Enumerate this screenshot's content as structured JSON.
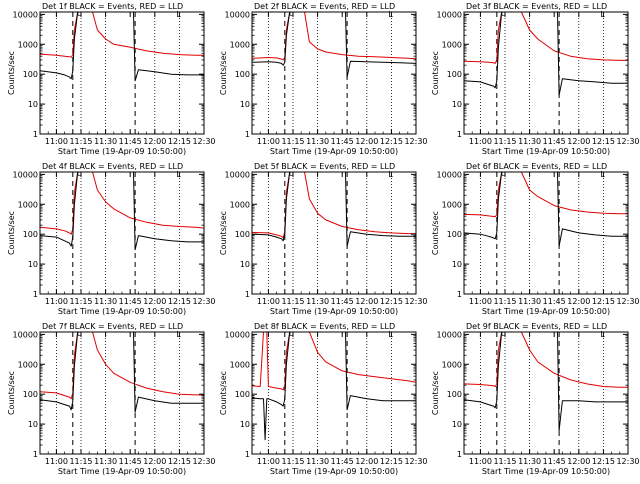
{
  "figure": {
    "xlabel": "Start Time (19-Apr-09 10:50:00)",
    "ylabel": "Counts/sec",
    "x_tick_labels": [
      "11:00",
      "11:15",
      "11:30",
      "11:45",
      "12:00",
      "12:15",
      "12:30"
    ],
    "y_tick_labels": [
      "1",
      "10",
      "100",
      "1000",
      "10000"
    ],
    "colors": {
      "events": "#000000",
      "lld": "#e00000"
    }
  },
  "chart_data": [
    {
      "type": "line",
      "title": "Det 1f BLACK = Events, RED = LLD",
      "x_unit": "minutes since 10:50",
      "xlim": [
        0,
        100
      ],
      "ylim": [
        1,
        12000
      ],
      "yscale": "log",
      "markers": {
        "dashed": [
          20,
          58
        ],
        "dotted": [
          10,
          25,
          40,
          70,
          85
        ],
        "flags": [
          "c",
          "L"
        ]
      },
      "series": [
        {
          "name": "Events",
          "key": "events",
          "x": [
            0,
            10,
            15,
            18,
            19,
            20,
            21,
            23,
            28,
            35,
            45,
            55,
            57,
            58,
            60,
            70,
            80,
            90,
            100
          ],
          "y": [
            130,
            110,
            95,
            80,
            70,
            130,
            1500,
            12000,
            12000,
            12000,
            12000,
            12000,
            12000,
            60,
            140,
            120,
            100,
            95,
            95
          ]
        },
        {
          "name": "LLD",
          "key": "lld",
          "x": [
            0,
            10,
            15,
            18,
            19,
            20,
            21,
            23,
            28,
            32,
            35,
            40,
            45,
            55,
            65,
            75,
            85,
            95,
            100
          ],
          "y": [
            470,
            430,
            400,
            380,
            370,
            450,
            3000,
            12000,
            12000,
            12000,
            3000,
            1500,
            1000,
            800,
            600,
            500,
            450,
            430,
            430
          ]
        }
      ]
    },
    {
      "type": "line",
      "title": "Det 2f BLACK = Events, RED = LLD",
      "x_unit": "minutes since 10:50",
      "xlim": [
        0,
        100
      ],
      "ylim": [
        1,
        12000
      ],
      "yscale": "log",
      "markers": {
        "dashed": [
          20,
          58
        ],
        "dotted": [
          10,
          25,
          40,
          70,
          85
        ],
        "flags": [
          "c",
          "L"
        ]
      },
      "series": [
        {
          "name": "Events",
          "key": "events",
          "x": [
            0,
            10,
            15,
            18,
            19,
            20,
            21,
            23,
            28,
            35,
            45,
            55,
            57,
            58,
            60,
            70,
            80,
            90,
            100
          ],
          "y": [
            250,
            260,
            250,
            230,
            200,
            250,
            2000,
            12000,
            12000,
            12000,
            12000,
            12000,
            12000,
            80,
            270,
            260,
            250,
            240,
            230
          ]
        },
        {
          "name": "LLD",
          "key": "lld",
          "x": [
            0,
            10,
            15,
            18,
            19,
            20,
            21,
            23,
            28,
            32,
            35,
            40,
            45,
            55,
            65,
            75,
            85,
            95,
            100
          ],
          "y": [
            340,
            360,
            350,
            320,
            300,
            360,
            3000,
            12000,
            12000,
            12000,
            1200,
            700,
            550,
            450,
            400,
            380,
            360,
            340,
            330
          ]
        }
      ]
    },
    {
      "type": "line",
      "title": "Det 3f BLACK = Events, RED = LLD",
      "x_unit": "minutes since 10:50",
      "xlim": [
        0,
        100
      ],
      "ylim": [
        1,
        12000
      ],
      "yscale": "log",
      "markers": {
        "dashed": [
          20,
          58
        ],
        "dotted": [
          10,
          25,
          40,
          70,
          85
        ],
        "flags": [
          "c",
          "L"
        ]
      },
      "series": [
        {
          "name": "Events",
          "key": "events",
          "x": [
            0,
            10,
            15,
            18,
            19,
            20,
            21,
            23,
            28,
            35,
            45,
            55,
            57,
            58,
            60,
            70,
            80,
            90,
            100
          ],
          "y": [
            60,
            55,
            45,
            40,
            35,
            60,
            800,
            12000,
            12000,
            12000,
            12000,
            12000,
            12000,
            20,
            70,
            60,
            55,
            50,
            50
          ]
        },
        {
          "name": "LLD",
          "key": "lld",
          "x": [
            0,
            10,
            15,
            18,
            19,
            20,
            21,
            23,
            28,
            32,
            35,
            40,
            45,
            55,
            65,
            75,
            85,
            95,
            100
          ],
          "y": [
            270,
            260,
            250,
            240,
            230,
            300,
            3000,
            12000,
            12000,
            12000,
            12000,
            3000,
            1500,
            600,
            400,
            330,
            300,
            290,
            290
          ]
        }
      ]
    },
    {
      "type": "line",
      "title": "Det 4f BLACK = Events, RED = LLD",
      "x_unit": "minutes since 10:50",
      "xlim": [
        0,
        100
      ],
      "ylim": [
        1,
        12000
      ],
      "yscale": "log",
      "markers": {
        "dashed": [
          20,
          58
        ],
        "dotted": [
          10,
          25,
          40,
          70,
          85
        ],
        "flags": [
          "c",
          "L"
        ]
      },
      "series": [
        {
          "name": "Events",
          "key": "events",
          "x": [
            0,
            10,
            15,
            18,
            19,
            20,
            21,
            23,
            28,
            35,
            45,
            55,
            57,
            58,
            60,
            70,
            80,
            90,
            100
          ],
          "y": [
            90,
            80,
            60,
            50,
            40,
            80,
            1000,
            12000,
            12000,
            12000,
            12000,
            12000,
            12000,
            30,
            90,
            70,
            60,
            55,
            55
          ]
        },
        {
          "name": "LLD",
          "key": "lld",
          "x": [
            0,
            10,
            15,
            18,
            19,
            20,
            21,
            23,
            28,
            32,
            35,
            40,
            45,
            55,
            65,
            75,
            85,
            95,
            100
          ],
          "y": [
            170,
            150,
            130,
            110,
            100,
            150,
            2500,
            12000,
            12000,
            12000,
            3000,
            1200,
            700,
            350,
            250,
            200,
            180,
            170,
            160
          ]
        }
      ]
    },
    {
      "type": "line",
      "title": "Det 5f BLACK = Events, RED = LLD",
      "x_unit": "minutes since 10:50",
      "xlim": [
        0,
        100
      ],
      "ylim": [
        1,
        12000
      ],
      "yscale": "log",
      "markers": {
        "dashed": [
          20,
          58
        ],
        "dotted": [
          10,
          25,
          40,
          70,
          85
        ],
        "flags": [
          "c",
          "L"
        ]
      },
      "series": [
        {
          "name": "Events",
          "key": "events",
          "x": [
            0,
            10,
            15,
            18,
            19,
            20,
            21,
            23,
            28,
            35,
            45,
            55,
            57,
            58,
            60,
            70,
            80,
            90,
            100
          ],
          "y": [
            100,
            95,
            80,
            70,
            60,
            100,
            1500,
            12000,
            12000,
            12000,
            12000,
            12000,
            12000,
            40,
            120,
            100,
            90,
            85,
            85
          ]
        },
        {
          "name": "LLD",
          "key": "lld",
          "x": [
            0,
            10,
            15,
            18,
            19,
            20,
            21,
            23,
            28,
            32,
            35,
            40,
            45,
            55,
            65,
            75,
            85,
            95,
            100
          ],
          "y": [
            115,
            110,
            95,
            85,
            75,
            120,
            2500,
            12000,
            12000,
            12000,
            1500,
            500,
            300,
            180,
            140,
            120,
            110,
            105,
            105
          ]
        }
      ]
    },
    {
      "type": "line",
      "title": "Det 6f BLACK = Events, RED = LLD",
      "x_unit": "minutes since 10:50",
      "xlim": [
        0,
        100
      ],
      "ylim": [
        1,
        12000
      ],
      "yscale": "log",
      "markers": {
        "dashed": [
          20,
          58
        ],
        "dotted": [
          10,
          25,
          40,
          70,
          85
        ],
        "flags": [
          "c",
          "L"
        ]
      },
      "series": [
        {
          "name": "Events",
          "key": "events",
          "x": [
            0,
            10,
            15,
            18,
            19,
            20,
            21,
            23,
            28,
            35,
            45,
            55,
            57,
            58,
            60,
            70,
            80,
            90,
            100
          ],
          "y": [
            110,
            100,
            85,
            75,
            70,
            110,
            1500,
            12000,
            12000,
            12000,
            12000,
            12000,
            12000,
            40,
            150,
            110,
            95,
            85,
            85
          ]
        },
        {
          "name": "LLD",
          "key": "lld",
          "x": [
            0,
            10,
            15,
            18,
            19,
            20,
            21,
            23,
            28,
            32,
            35,
            40,
            45,
            55,
            65,
            75,
            85,
            95,
            100
          ],
          "y": [
            460,
            440,
            410,
            390,
            380,
            450,
            3000,
            12000,
            12000,
            12000,
            12000,
            3000,
            1800,
            900,
            650,
            550,
            500,
            480,
            480
          ]
        }
      ]
    },
    {
      "type": "line",
      "title": "Det 7f BLACK = Events, RED = LLD",
      "x_unit": "minutes since 10:50",
      "xlim": [
        0,
        100
      ],
      "ylim": [
        1,
        12000
      ],
      "yscale": "log",
      "markers": {
        "dashed": [
          20,
          58
        ],
        "dotted": [
          10,
          25,
          40,
          70,
          85
        ],
        "flags": [
          "c",
          "L"
        ]
      },
      "series": [
        {
          "name": "Events",
          "key": "events",
          "x": [
            0,
            10,
            15,
            18,
            19,
            20,
            21,
            23,
            28,
            35,
            45,
            55,
            57,
            58,
            60,
            70,
            80,
            90,
            100
          ],
          "y": [
            65,
            55,
            45,
            40,
            30,
            60,
            900,
            12000,
            12000,
            12000,
            12000,
            12000,
            12000,
            25,
            80,
            60,
            50,
            50,
            50
          ]
        },
        {
          "name": "LLD",
          "key": "lld",
          "x": [
            0,
            10,
            15,
            18,
            19,
            20,
            21,
            23,
            28,
            32,
            35,
            40,
            45,
            55,
            65,
            75,
            85,
            95,
            100
          ],
          "y": [
            120,
            110,
            90,
            80,
            70,
            110,
            2000,
            12000,
            12000,
            12000,
            3000,
            1000,
            500,
            250,
            160,
            120,
            100,
            95,
            95
          ]
        }
      ]
    },
    {
      "type": "line",
      "title": "Det 8f BLACK = Events, RED = LLD",
      "x_unit": "minutes since 10:50",
      "xlim": [
        0,
        100
      ],
      "ylim": [
        1,
        12000
      ],
      "yscale": "log",
      "markers": {
        "dashed": [
          20,
          58
        ],
        "dotted": [
          10,
          25,
          40,
          70,
          85
        ],
        "flags": [
          "c",
          "L"
        ]
      },
      "series": [
        {
          "name": "Events",
          "key": "events",
          "x": [
            0,
            5,
            7,
            8,
            9,
            10,
            15,
            18,
            19,
            20,
            21,
            23,
            28,
            35,
            45,
            55,
            57,
            58,
            60,
            70,
            80,
            90,
            100
          ],
          "y": [
            75,
            70,
            70,
            3,
            70,
            70,
            55,
            45,
            40,
            70,
            1000,
            12000,
            12000,
            12000,
            12000,
            12000,
            12000,
            30,
            90,
            70,
            60,
            60,
            60
          ]
        },
        {
          "name": "LLD",
          "key": "lld",
          "x": [
            0,
            5,
            7,
            8,
            9,
            10,
            15,
            18,
            19,
            20,
            21,
            23,
            28,
            32,
            35,
            40,
            45,
            55,
            65,
            75,
            85,
            95,
            100
          ],
          "y": [
            190,
            180,
            12000,
            12000,
            12000,
            180,
            160,
            150,
            140,
            200,
            2500,
            12000,
            12000,
            12000,
            12000,
            2500,
            1200,
            600,
            450,
            380,
            330,
            280,
            250
          ]
        }
      ]
    },
    {
      "type": "line",
      "title": "Det 9f BLACK = Events, RED = LLD",
      "x_unit": "minutes since 10:50",
      "xlim": [
        0,
        100
      ],
      "ylim": [
        1,
        12000
      ],
      "yscale": "log",
      "markers": {
        "dashed": [
          20,
          58
        ],
        "dotted": [
          10,
          25,
          40,
          70,
          85
        ],
        "flags": [
          "c",
          "L"
        ]
      },
      "series": [
        {
          "name": "Events",
          "key": "events",
          "x": [
            0,
            10,
            15,
            18,
            19,
            20,
            21,
            23,
            28,
            35,
            45,
            55,
            57,
            58,
            60,
            70,
            80,
            90,
            100
          ],
          "y": [
            65,
            55,
            45,
            40,
            35,
            60,
            900,
            12000,
            12000,
            12000,
            12000,
            12000,
            12000,
            6,
            60,
            60,
            55,
            55,
            55
          ]
        },
        {
          "name": "LLD",
          "key": "lld",
          "x": [
            0,
            10,
            15,
            18,
            19,
            20,
            21,
            23,
            28,
            32,
            35,
            40,
            45,
            55,
            65,
            75,
            85,
            95,
            100
          ],
          "y": [
            220,
            210,
            200,
            190,
            180,
            220,
            3000,
            12000,
            12000,
            12000,
            12000,
            3000,
            1200,
            500,
            300,
            220,
            180,
            170,
            170
          ]
        }
      ]
    }
  ]
}
